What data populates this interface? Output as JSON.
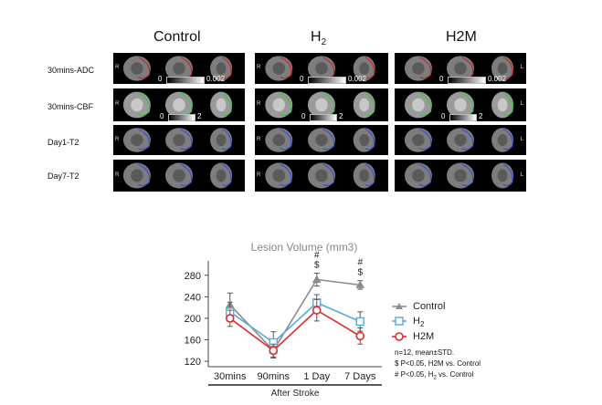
{
  "columns": [
    {
      "id": "control",
      "label": "Control",
      "sub": ""
    },
    {
      "id": "h2",
      "label": "H",
      "sub": "2"
    },
    {
      "id": "h2m",
      "label": "H2M",
      "sub": ""
    }
  ],
  "rows": [
    {
      "id": "adc",
      "label": "30mins-ADC"
    },
    {
      "id": "cbf",
      "label": "30mins-CBF"
    },
    {
      "id": "day1",
      "label": "Day1-T2"
    },
    {
      "id": "day7",
      "label": "Day7-T2"
    }
  ],
  "side_labels": {
    "left": "R",
    "right": "L"
  },
  "scales": {
    "adc": {
      "min": "0",
      "max": "0.002"
    },
    "cbf": {
      "min": "0",
      "max": "2"
    }
  },
  "outline_colors": {
    "adc": "#d0232a",
    "cbf": "#3cc447",
    "day1": "#3a4fd8",
    "day7": "#3a4fd8"
  },
  "chart_data": {
    "type": "line",
    "title": "Lesion  Volume (mm3)",
    "categories": [
      "30mins",
      "90mins",
      "1 Day",
      "7 Days"
    ],
    "xlabel": "After Stroke",
    "ylabel": "",
    "ylim": [
      110,
      300
    ],
    "yticks": [
      120,
      160,
      200,
      240,
      280
    ],
    "series": [
      {
        "name": "Control",
        "color": "#8c8c8c",
        "marker": "triangle",
        "values": [
          225,
          140,
          272,
          262
        ],
        "errors": [
          22,
          14,
          12,
          8
        ]
      },
      {
        "name": "H2",
        "name_main": "H",
        "name_sub": "2",
        "color": "#5aa9dc",
        "marker": "square",
        "values": [
          212,
          155,
          229,
          194
        ],
        "errors": [
          18,
          20,
          15,
          18
        ]
      },
      {
        "name": "H2M",
        "color": "#e02a2a",
        "marker": "circle",
        "values": [
          200,
          140,
          215,
          167
        ],
        "errors": [
          15,
          12,
          20,
          15
        ]
      }
    ],
    "annotations": [
      {
        "category": "1 Day",
        "lines": [
          "#",
          "$"
        ]
      },
      {
        "category": "7 Days",
        "lines": [
          "#",
          "$"
        ]
      }
    ],
    "notes": [
      {
        "text": "n=12, mean±STD."
      },
      {
        "text": "$ P<0.05, H2M vs. Control"
      },
      {
        "pre": "# P<0.05, H",
        "sub": "2",
        "post": " vs. Control"
      }
    ]
  }
}
